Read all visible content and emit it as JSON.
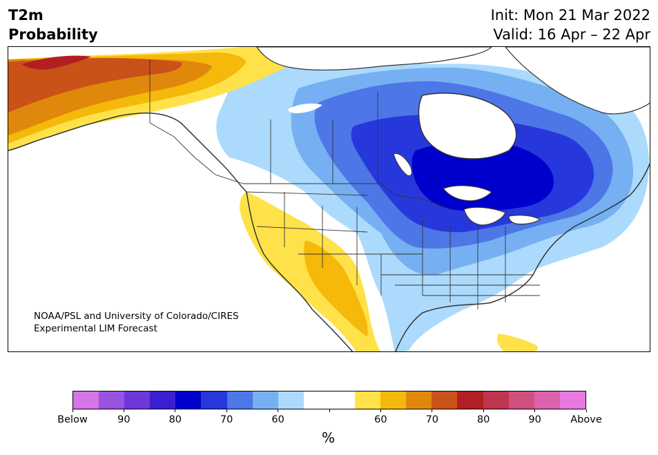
{
  "header": {
    "title_line1": "T2m",
    "title_line2": "Probability",
    "init": "Init: Mon 21 Mar 2022",
    "valid": "Valid: 16 Apr – 22 Apr"
  },
  "map": {
    "credit_line1": "NOAA/PSL and University of Colorado/CIRES",
    "credit_line2": "Experimental LIM Forecast"
  },
  "colorbar": {
    "unit": "%",
    "colors": [
      "#d575e8",
      "#9a52e0",
      "#6e37d8",
      "#3a1fd2",
      "#0000cd",
      "#2638dc",
      "#4d76e6",
      "#76b0f2",
      "#acdafc",
      "#ffffff",
      "#ffffff",
      "#ffe24a",
      "#f4b90a",
      "#e0880c",
      "#c85218",
      "#b11f22",
      "#c03550",
      "#cf4f7f",
      "#dc62ad",
      "#e978e0"
    ],
    "labels": [
      "Below",
      "90",
      "80",
      "70",
      "60",
      "",
      "60",
      "70",
      "80",
      "90",
      "Above"
    ]
  }
}
